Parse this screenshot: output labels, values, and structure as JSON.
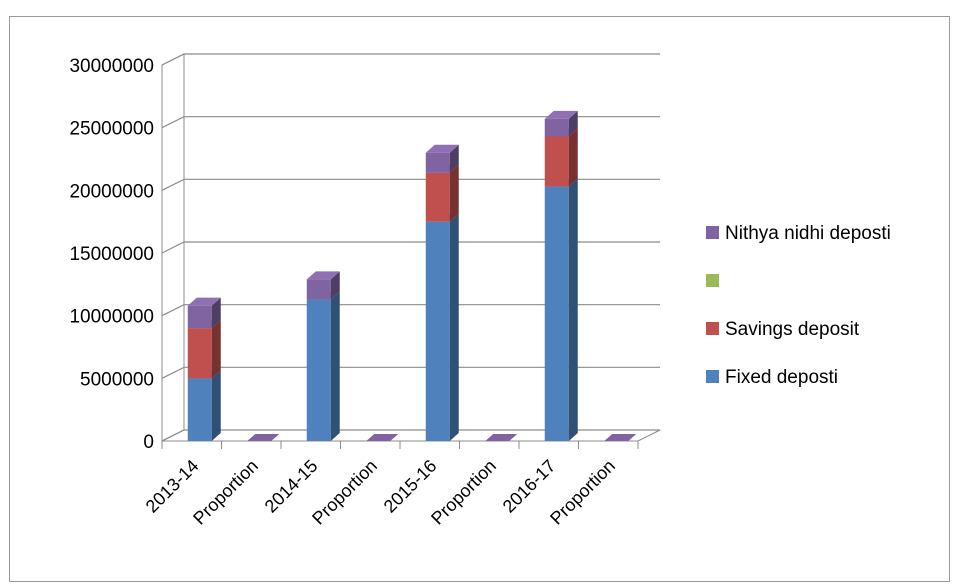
{
  "chart_data": {
    "type": "bar",
    "stacked": true,
    "style": "3d-column",
    "categories": [
      "2013-14",
      "Proportion",
      "2014-15",
      "Proportion",
      "2015-16",
      "Proportion",
      "2016-17",
      "Proportion"
    ],
    "series": [
      {
        "name": "Fixed deposti",
        "color": "#4f81bd",
        "values": [
          5000000,
          0,
          11300000,
          0,
          17500000,
          0,
          20300000,
          0
        ]
      },
      {
        "name": "Savings deposit",
        "color": "#c0504d",
        "values": [
          4000000,
          0,
          0,
          0,
          3900000,
          0,
          4000000,
          0
        ]
      },
      {
        "name": "",
        "color": "#9bbb59",
        "values": [
          0,
          0,
          0,
          0,
          0,
          0,
          0,
          0
        ]
      },
      {
        "name": "Nithya nidhi deposti",
        "color": "#8064a2",
        "values": [
          1800000,
          0,
          1600000,
          0,
          1600000,
          0,
          1400000,
          0
        ]
      }
    ],
    "legend_order": [
      3,
      2,
      1,
      0
    ],
    "ylim": [
      0,
      30000000
    ],
    "yticks": [
      "0",
      "5000000",
      "10000000",
      "15000000",
      "20000000",
      "25000000",
      "30000000"
    ],
    "grid": true,
    "legend_position": "right",
    "title": "",
    "xlabel": "",
    "ylabel": ""
  }
}
